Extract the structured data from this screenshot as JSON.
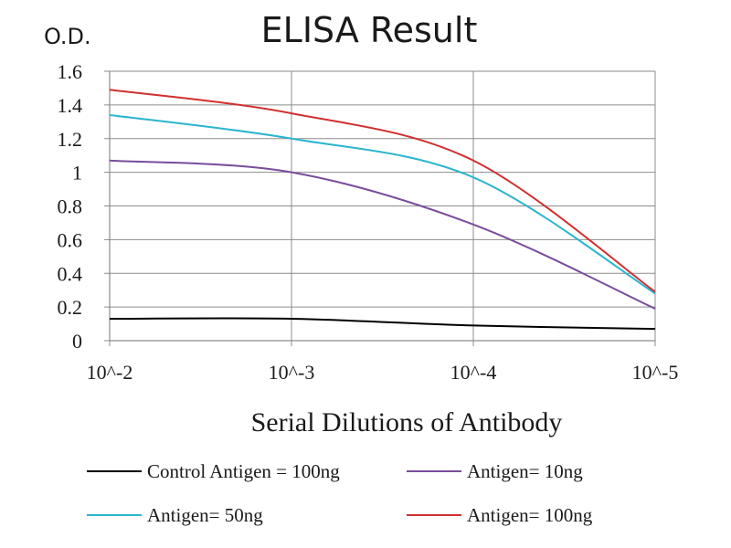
{
  "chart_data": {
    "type": "line",
    "title": "ELISA Result",
    "ylabel": "O.D.",
    "xlabel": "Serial Dilutions  of Antibody",
    "categories": [
      "10^-2",
      "10^-3",
      "10^-4",
      "10^-5"
    ],
    "ylim": [
      0,
      1.6
    ],
    "yticks": [
      "0",
      "0.2",
      "0.4",
      "0.6",
      "0.8",
      "1",
      "1.2",
      "1.4",
      "1.6"
    ],
    "grid": true,
    "legend_position": "bottom",
    "series": [
      {
        "name": "Control Antigen = 100ng",
        "color": "#000000",
        "values": [
          0.13,
          0.13,
          0.09,
          0.07
        ]
      },
      {
        "name": "Antigen= 10ng",
        "color": "#7a4c9c",
        "values": [
          1.07,
          1.0,
          0.69,
          0.19
        ]
      },
      {
        "name": "Antigen= 50ng",
        "color": "#2bb5cf",
        "values": [
          1.34,
          1.2,
          0.97,
          0.28
        ]
      },
      {
        "name": "Antigen= 100ng",
        "color": "#d0302f",
        "values": [
          1.49,
          1.35,
          1.07,
          0.29
        ]
      }
    ]
  }
}
